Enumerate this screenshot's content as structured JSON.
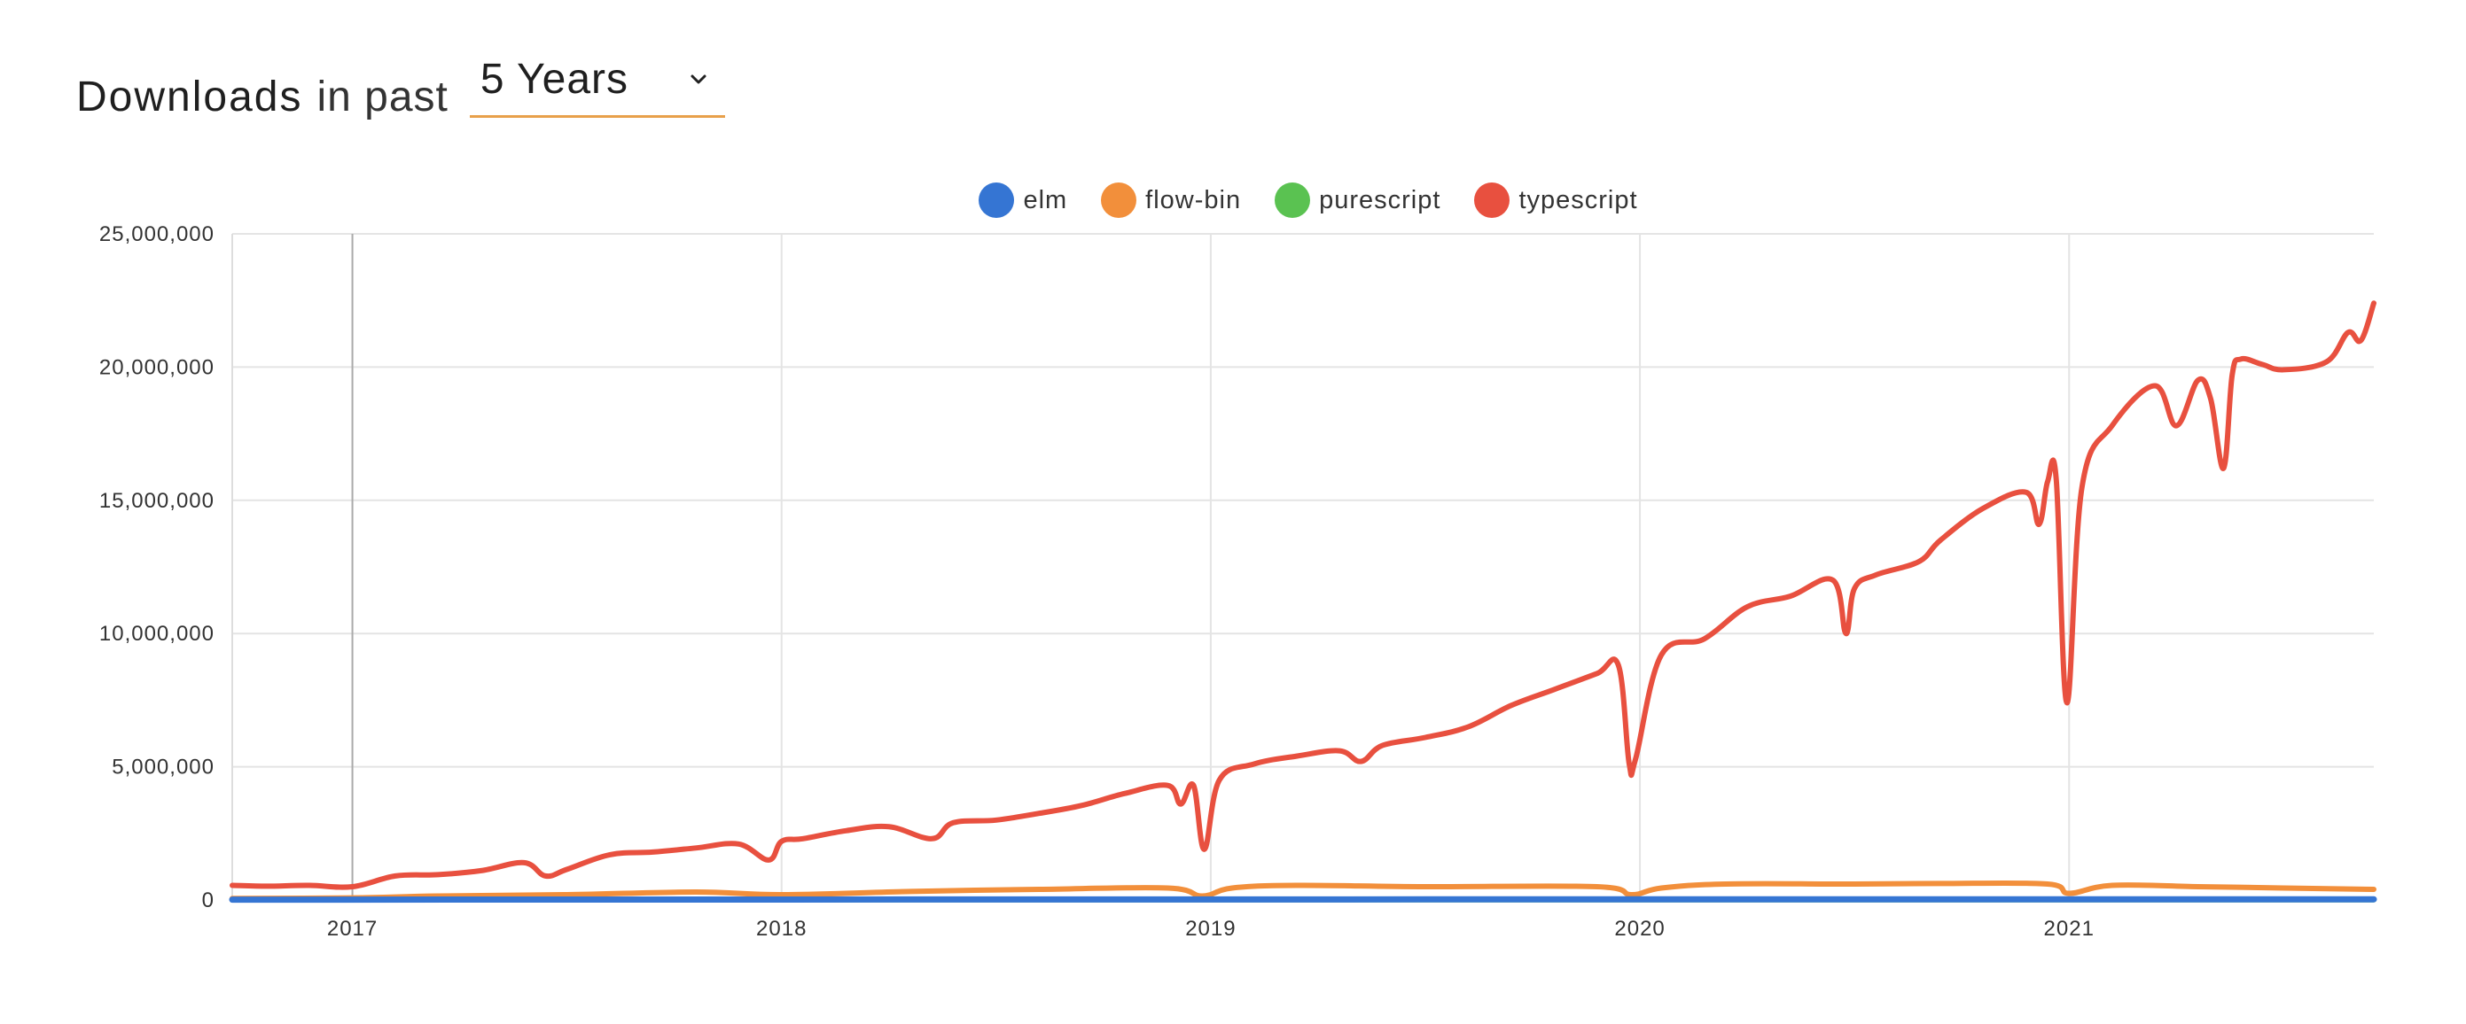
{
  "header": {
    "title_strong": "Downloads",
    "title_light": "in past",
    "period_selected": "5 Years",
    "chevron_icon": "chevron-down-icon",
    "accent_color": "#e8a04a"
  },
  "legend": [
    {
      "name": "elm",
      "color": "#3575d3"
    },
    {
      "name": "flow-bin",
      "color": "#f28f3b"
    },
    {
      "name": "purescript",
      "color": "#5ac251"
    },
    {
      "name": "typescript",
      "color": "#e8503f"
    }
  ],
  "chart_data": {
    "type": "line",
    "ylim": [
      0,
      25000000
    ],
    "y_ticks": [
      {
        "value": 0,
        "label": "0"
      },
      {
        "value": 5000000,
        "label": "5,000,000"
      },
      {
        "value": 10000000,
        "label": "10,000,000"
      },
      {
        "value": 15000000,
        "label": "15,000,000"
      },
      {
        "value": 20000000,
        "label": "20,000,000"
      },
      {
        "value": 25000000,
        "label": "25,000,000"
      }
    ],
    "xlim": [
      2016.72,
      2021.71
    ],
    "x_ticks": [
      {
        "value": 2017,
        "label": "2017"
      },
      {
        "value": 2018,
        "label": "2018"
      },
      {
        "value": 2019,
        "label": "2019"
      },
      {
        "value": 2020,
        "label": "2020"
      },
      {
        "value": 2021,
        "label": "2021"
      }
    ],
    "grid": true,
    "legend_position": "top-center",
    "series": [
      {
        "name": "typescript",
        "color": "#e8503f",
        "x": [
          2016.72,
          2016.8,
          2016.9,
          2017.0,
          2017.1,
          2017.2,
          2017.3,
          2017.4,
          2017.45,
          2017.5,
          2017.6,
          2017.7,
          2017.8,
          2017.9,
          2017.97,
          2018.0,
          2018.05,
          2018.15,
          2018.25,
          2018.35,
          2018.4,
          2018.5,
          2018.6,
          2018.7,
          2018.8,
          2018.9,
          2018.93,
          2018.96,
          2018.985,
          2019.02,
          2019.1,
          2019.2,
          2019.3,
          2019.35,
          2019.4,
          2019.5,
          2019.6,
          2019.7,
          2019.8,
          2019.9,
          2019.95,
          2019.975,
          2019.99,
          2020.05,
          2020.15,
          2020.25,
          2020.35,
          2020.45,
          2020.48,
          2020.5,
          2020.55,
          2020.65,
          2020.7,
          2020.8,
          2020.9,
          2020.93,
          2020.95,
          2020.97,
          2020.995,
          2021.03,
          2021.1,
          2021.2,
          2021.25,
          2021.3,
          2021.33,
          2021.36,
          2021.38,
          2021.4,
          2021.45,
          2021.5,
          2021.6,
          2021.65,
          2021.68,
          2021.71
        ],
        "y": [
          550000,
          520000,
          550000,
          500000,
          900000,
          950000,
          1100000,
          1400000,
          900000,
          1150000,
          1700000,
          1800000,
          1950000,
          2100000,
          1500000,
          2200000,
          2300000,
          2600000,
          2750000,
          2300000,
          2900000,
          3000000,
          3250000,
          3550000,
          4000000,
          4300000,
          3600000,
          4300000,
          1900000,
          4500000,
          5100000,
          5400000,
          5600000,
          5200000,
          5800000,
          6100000,
          6500000,
          7300000,
          7900000,
          8500000,
          8800000,
          5100000,
          5300000,
          9200000,
          9800000,
          11000000,
          11400000,
          12000000,
          10000000,
          11700000,
          12200000,
          12700000,
          13500000,
          14700000,
          15300000,
          14100000,
          15700000,
          15800000,
          7400000,
          15500000,
          17800000,
          19300000,
          17800000,
          19500000,
          18800000,
          16200000,
          19700000,
          20300000,
          20100000,
          19900000,
          20200000,
          21300000,
          21000000,
          22400000
        ]
      },
      {
        "name": "flow-bin",
        "color": "#f28f3b",
        "x": [
          2016.72,
          2017.0,
          2017.2,
          2017.5,
          2017.8,
          2018.0,
          2018.3,
          2018.6,
          2018.9,
          2018.98,
          2019.05,
          2019.2,
          2019.5,
          2019.9,
          2019.98,
          2020.05,
          2020.2,
          2020.5,
          2020.7,
          2020.95,
          2021.0,
          2021.1,
          2021.3,
          2021.5,
          2021.71
        ],
        "y": [
          60000,
          80000,
          150000,
          200000,
          300000,
          200000,
          320000,
          400000,
          450000,
          150000,
          450000,
          550000,
          500000,
          500000,
          200000,
          450000,
          600000,
          600000,
          620000,
          600000,
          250000,
          550000,
          500000,
          450000,
          400000
        ]
      },
      {
        "name": "purescript",
        "color": "#5ac251",
        "x": [
          2016.72,
          2017.5,
          2018.5,
          2019.5,
          2020.5,
          2021.71
        ],
        "y": [
          4000,
          5000,
          6000,
          6000,
          7000,
          7000
        ]
      },
      {
        "name": "elm",
        "color": "#3575d3",
        "x": [
          2016.72,
          2017.5,
          2018.5,
          2019.5,
          2020.5,
          2021.71
        ],
        "y": [
          12000,
          15000,
          20000,
          22000,
          25000,
          25000
        ]
      }
    ]
  }
}
